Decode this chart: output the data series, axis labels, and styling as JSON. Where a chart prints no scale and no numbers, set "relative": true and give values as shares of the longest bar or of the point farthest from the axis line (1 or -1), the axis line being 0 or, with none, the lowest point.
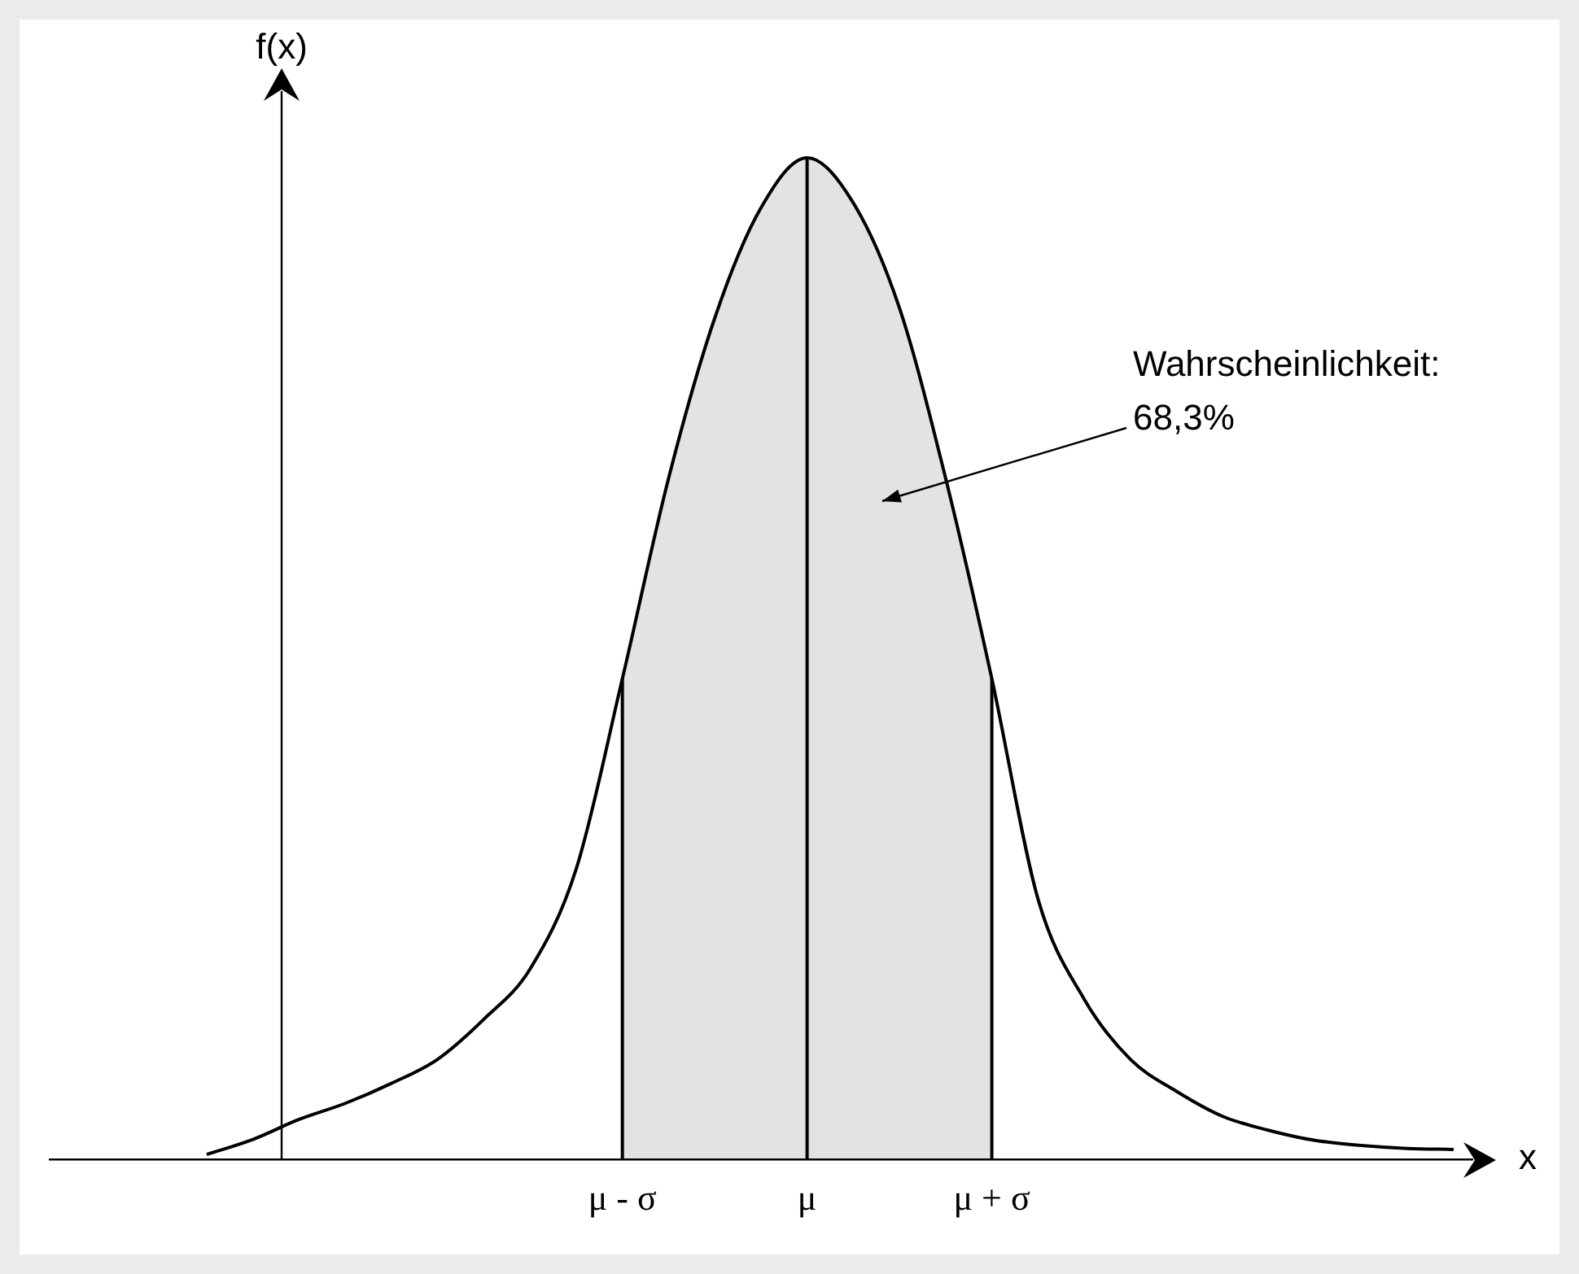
{
  "chart_data": {
    "type": "line",
    "relative": true,
    "xlabel": "x",
    "ylabel": "f(x)",
    "categories": [
      null,
      null,
      null,
      null,
      null,
      null,
      null,
      null,
      null,
      "μ - σ",
      null,
      null,
      null,
      "μ",
      null,
      null,
      null,
      "μ + σ",
      null,
      null,
      null,
      null,
      null,
      null,
      null,
      null,
      null,
      null
    ],
    "series": [
      {
        "type": "area",
        "color": "#e2e3e5",
        "values": [
          null,
          null,
          null,
          null,
          null,
          null,
          null,
          null,
          null,
          0.48,
          0.68,
          0.84,
          0.95,
          1.0,
          0.955,
          0.85,
          0.68,
          0.48,
          null,
          null,
          null,
          null,
          null,
          null,
          null,
          null,
          null,
          null
        ]
      },
      {
        "type": "line",
        "color": "#000000",
        "values": [
          0.005,
          0.02,
          0.04,
          0.056,
          0.076,
          0.1,
          0.14,
          0.19,
          0.29,
          0.48,
          0.68,
          0.84,
          0.95,
          1.0,
          0.955,
          0.85,
          0.68,
          0.48,
          0.26,
          0.16,
          0.1,
          0.068,
          0.043,
          0.029,
          0.019,
          0.014,
          0.011,
          0.01
        ]
      }
    ],
    "ref_lines": [
      {
        "axis": "x",
        "value": "μ - σ",
        "color": "#000000"
      },
      {
        "axis": "x",
        "value": "μ",
        "color": "#000000"
      },
      {
        "axis": "x",
        "value": "μ + σ",
        "color": "#000000"
      }
    ],
    "annotations": [
      "Wahrscheinlichkeit:\n68,3%"
    ],
    "grid": false,
    "legend": false,
    "marker": "none",
    "line_style": "solid"
  }
}
